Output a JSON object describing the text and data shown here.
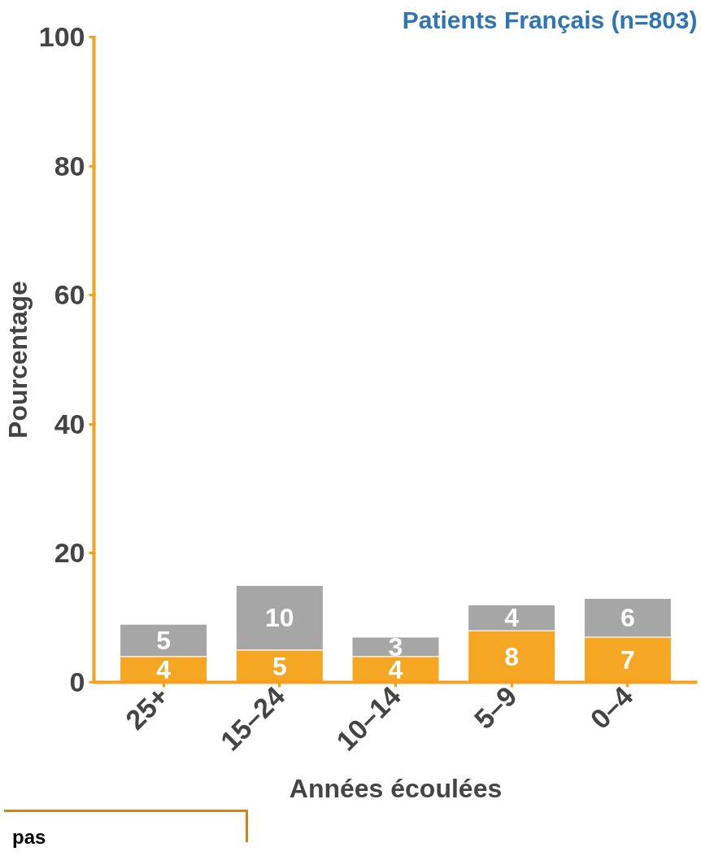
{
  "chart_data": {
    "type": "bar",
    "title": "Patients Français (n=803)",
    "xlabel": "Années écoulées",
    "ylabel": "Pourcentage",
    "categories": [
      "25+",
      "15–24",
      "10–14",
      "5–9",
      "0–4"
    ],
    "stacked": true,
    "series": [
      {
        "color": "#f5a623",
        "values": [
          4,
          5,
          4,
          8,
          7
        ]
      },
      {
        "color": "#a6a6a6",
        "values": [
          5,
          10,
          3,
          4,
          6
        ]
      }
    ],
    "ylim": [
      0,
      100
    ],
    "yticks": [
      0,
      20,
      40,
      60,
      80,
      100
    ],
    "data_labels": true,
    "grid": false,
    "annotations": [
      "pas"
    ]
  }
}
